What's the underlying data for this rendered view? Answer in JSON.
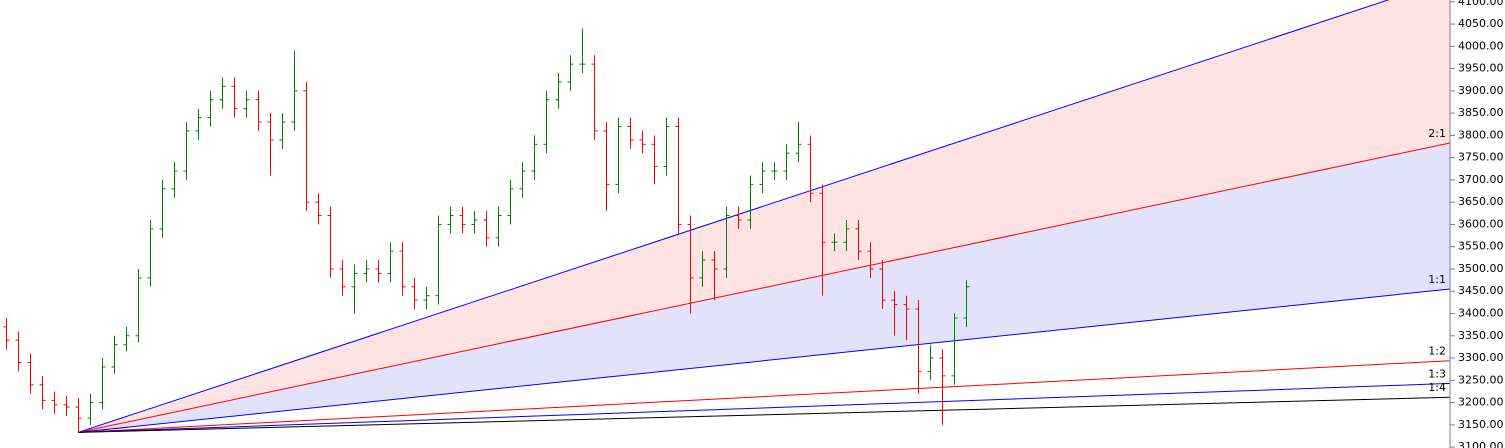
{
  "chart_data": {
    "type": "ohlc",
    "up_color": "#008000",
    "down_color": "#ff0000",
    "xlim": [
      -0.5,
      120.3
    ],
    "ylim": [
      3098,
      4104
    ],
    "yticks": [
      {
        "value": 3100,
        "label": "3100.00"
      },
      {
        "value": 3150,
        "label": "3150.00"
      },
      {
        "value": 3200,
        "label": "3200.00"
      },
      {
        "value": 3250,
        "label": "3250.00"
      },
      {
        "value": 3300,
        "label": "3300.00"
      },
      {
        "value": 3350,
        "label": "3350.00"
      },
      {
        "value": 3400,
        "label": "3400.00"
      },
      {
        "value": 3450,
        "label": "3450.00"
      },
      {
        "value": 3500,
        "label": "3500.00"
      },
      {
        "value": 3550,
        "label": "3550.00"
      },
      {
        "value": 3600,
        "label": "3600.00"
      },
      {
        "value": 3650,
        "label": "3650.00"
      },
      {
        "value": 3700,
        "label": "3700.00"
      },
      {
        "value": 3750,
        "label": "3750.00"
      },
      {
        "value": 3800,
        "label": "3800.00"
      },
      {
        "value": 3850,
        "label": "3850.00"
      },
      {
        "value": 3900,
        "label": "3900.00"
      },
      {
        "value": 3950,
        "label": "3950.00"
      },
      {
        "value": 4000,
        "label": "4000.00"
      },
      {
        "value": 4050,
        "label": "4050.00"
      },
      {
        "value": 4100,
        "label": "4100.00"
      }
    ],
    "open": [
      3370,
      3340,
      3290,
      3240,
      3205,
      3195,
      3190,
      3165,
      3200,
      3280,
      3330,
      3350,
      3480,
      3590,
      3680,
      3720,
      3810,
      3840,
      3880,
      3910,
      3860,
      3880,
      3830,
      3790,
      3830,
      3900,
      3650,
      3620,
      3500,
      3460,
      3490,
      3500,
      3490,
      3540,
      3460,
      3430,
      3440,
      3600,
      3620,
      3600,
      3610,
      3570,
      3620,
      3680,
      3720,
      3780,
      3880,
      3920,
      3960,
      3960,
      3810,
      3690,
      3820,
      3790,
      3780,
      3730,
      3820,
      3600,
      3480,
      3520,
      3500,
      3620,
      3610,
      3690,
      3720,
      3720,
      3760,
      3780,
      3670,
      3560,
      3560,
      3590,
      3540,
      3500,
      3430,
      3420,
      3410,
      3270,
      3300,
      3260,
      3390
    ],
    "high": [
      3390,
      3360,
      3310,
      3260,
      3225,
      3215,
      3210,
      3220,
      3300,
      3350,
      3370,
      3500,
      3610,
      3700,
      3740,
      3830,
      3860,
      3900,
      3930,
      3930,
      3900,
      3900,
      3850,
      3850,
      3990,
      3920,
      3670,
      3640,
      3520,
      3510,
      3520,
      3520,
      3560,
      3560,
      3480,
      3460,
      3620,
      3640,
      3640,
      3630,
      3630,
      3640,
      3700,
      3740,
      3800,
      3900,
      3940,
      3980,
      4040,
      3980,
      3830,
      3840,
      3840,
      3810,
      3800,
      3840,
      3840,
      3620,
      3540,
      3540,
      3640,
      3640,
      3710,
      3740,
      3740,
      3780,
      3830,
      3800,
      3690,
      3580,
      3610,
      3610,
      3560,
      3520,
      3450,
      3440,
      3430,
      3330,
      3320,
      3400,
      3475
    ],
    "low": [
      3320,
      3270,
      3220,
      3185,
      3175,
      3170,
      3133,
      3150,
      3185,
      3265,
      3315,
      3335,
      3460,
      3570,
      3660,
      3700,
      3790,
      3820,
      3860,
      3840,
      3840,
      3810,
      3710,
      3770,
      3810,
      3630,
      3600,
      3480,
      3440,
      3400,
      3470,
      3470,
      3470,
      3440,
      3410,
      3410,
      3420,
      3580,
      3580,
      3580,
      3550,
      3550,
      3600,
      3660,
      3700,
      3760,
      3860,
      3900,
      3940,
      3790,
      3630,
      3670,
      3770,
      3760,
      3690,
      3710,
      3580,
      3400,
      3460,
      3430,
      3480,
      3590,
      3590,
      3670,
      3700,
      3700,
      3740,
      3650,
      3440,
      3540,
      3540,
      3520,
      3480,
      3410,
      3350,
      3340,
      3220,
      3250,
      3150,
      3240,
      3370
    ],
    "close": [
      3340,
      3290,
      3240,
      3205,
      3195,
      3190,
      3165,
      3200,
      3280,
      3330,
      3350,
      3480,
      3590,
      3680,
      3720,
      3810,
      3840,
      3880,
      3910,
      3860,
      3880,
      3830,
      3790,
      3830,
      3900,
      3650,
      3620,
      3500,
      3460,
      3490,
      3500,
      3490,
      3540,
      3460,
      3430,
      3440,
      3600,
      3620,
      3600,
      3610,
      3570,
      3620,
      3680,
      3720,
      3780,
      3880,
      3920,
      3960,
      3960,
      3810,
      3690,
      3820,
      3790,
      3780,
      3730,
      3820,
      3600,
      3480,
      3520,
      3500,
      3620,
      3610,
      3690,
      3720,
      3720,
      3760,
      3780,
      3670,
      3560,
      3560,
      3590,
      3540,
      3500,
      3430,
      3420,
      3410,
      3270,
      3300,
      3260,
      3390,
      3460
    ],
    "fan": {
      "origin_index": 6,
      "origin_price": 3133,
      "end_index": 120.3,
      "lines": [
        {
          "end": 4150,
          "color": "#0000ff",
          "fill_below": "#ffe2e2"
        },
        {
          "label": "2:1",
          "end": 3783,
          "color": "#ff0000",
          "fill_below": "#e2e2fa"
        },
        {
          "label": "1:1",
          "end": 3455,
          "color": "#0000ff"
        },
        {
          "label": "1:2",
          "end": 3294,
          "color": "#ff0000"
        },
        {
          "label": "1:3",
          "end": 3243,
          "color": "#0000ff"
        },
        {
          "label": "1:4",
          "end": 3212,
          "color": "#000000"
        }
      ]
    }
  }
}
